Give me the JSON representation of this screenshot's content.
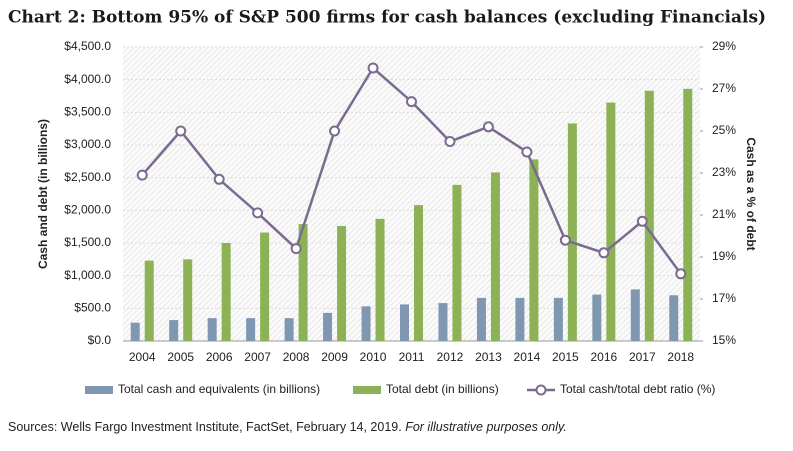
{
  "chart_data": {
    "type": "bar",
    "title": "Chart 2: Bottom 95% of S&P 500 firms for cash balances (excluding Financials)",
    "ylabel": "Cash and debt (in billions)",
    "y2label": "Cash as a % of debt",
    "categories": [
      "2004",
      "2005",
      "2006",
      "2007",
      "2008",
      "2009",
      "2010",
      "2011",
      "2012",
      "2013",
      "2014",
      "2015",
      "2016",
      "2017",
      "2018"
    ],
    "series": [
      {
        "name": "Total cash and equivalents (in billions)",
        "color": "#7f97b0",
        "type": "bar",
        "values": [
          280,
          320,
          350,
          350,
          350,
          430,
          530,
          560,
          580,
          660,
          660,
          660,
          710,
          790,
          700
        ]
      },
      {
        "name": "Total debt (in billions)",
        "color": "#8db255",
        "type": "bar",
        "values": [
          1230,
          1250,
          1500,
          1660,
          1790,
          1760,
          1870,
          2080,
          2390,
          2580,
          2780,
          3330,
          3650,
          3830,
          3860
        ]
      },
      {
        "name": "Total cash/total debt ratio (%)",
        "color": "#7b6b8f",
        "type": "line",
        "axis": "y2",
        "values": [
          22.9,
          25.0,
          22.7,
          21.1,
          19.4,
          25.0,
          28.0,
          26.4,
          24.5,
          25.2,
          24.0,
          19.8,
          19.2,
          20.7,
          18.2
        ]
      }
    ],
    "ylim": [
      0,
      4500
    ],
    "yticks": [
      {
        "value": 0,
        "label": "$0.0"
      },
      {
        "value": 500,
        "label": "$500.0"
      },
      {
        "value": 1000,
        "label": "$1,000.0"
      },
      {
        "value": 1500,
        "label": "$1,500.0"
      },
      {
        "value": 2000,
        "label": "$2,000.0"
      },
      {
        "value": 2500,
        "label": "$2,500.0"
      },
      {
        "value": 3000,
        "label": "$3,000.0"
      },
      {
        "value": 3500,
        "label": "$3,500.0"
      },
      {
        "value": 4000,
        "label": "$4,000.0"
      },
      {
        "value": 4500,
        "label": "$4,500.0"
      }
    ],
    "y2lim": [
      15,
      29
    ],
    "y2ticks": [
      {
        "value": 15,
        "label": "15%"
      },
      {
        "value": 17,
        "label": "17%"
      },
      {
        "value": 19,
        "label": "19%"
      },
      {
        "value": 21,
        "label": "21%"
      },
      {
        "value": 23,
        "label": "23%"
      },
      {
        "value": 25,
        "label": "25%"
      },
      {
        "value": 27,
        "label": "27%"
      },
      {
        "value": 29,
        "label": "29%"
      }
    ],
    "grid": true,
    "legend": "bottom",
    "source": "Sources: Wells Fargo Investment Institute, FactSet, February 14, 2019.",
    "source_note": "For illustrative purposes only."
  }
}
